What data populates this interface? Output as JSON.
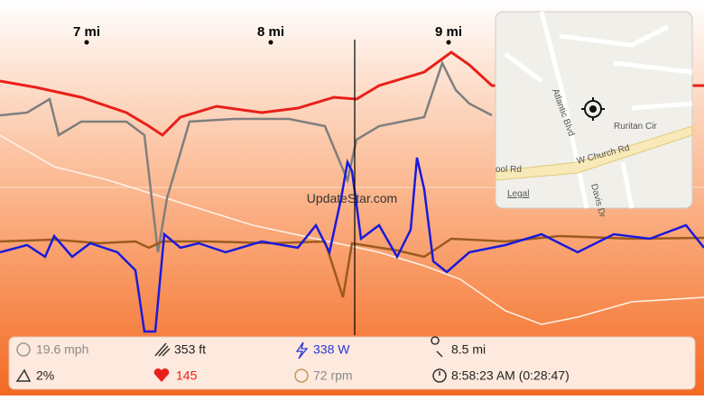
{
  "mile_markers": [
    "7 mi",
    "8 mi",
    "9 mi"
  ],
  "watermark": "UpdateStar.com",
  "map": {
    "streets": [
      "Atlantic Blvd",
      "Ruritan Cir",
      "W Church Rd",
      "ool Rd",
      "Davis Dr"
    ],
    "legal": "Legal"
  },
  "stats": {
    "speed": "19.6 mph",
    "elevation": "353 ft",
    "power": "338 W",
    "distance": "8.5 mi",
    "grade": "2%",
    "heart_rate": "145",
    "cadence": "72 rpm",
    "time": "8:58:23 AM (0:28:47)"
  }
}
